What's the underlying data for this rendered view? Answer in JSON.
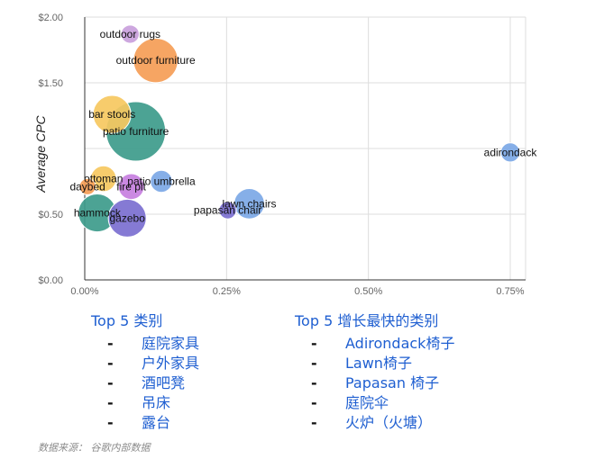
{
  "chart_data": {
    "type": "bubble",
    "ylabel": "Average CPC",
    "xlabel": "",
    "xlim": [
      0,
      0.0077
    ],
    "ylim": [
      0,
      2.0
    ],
    "x_ticks": [
      "0.00%",
      "0.25%",
      "0.50%",
      "0.75%"
    ],
    "x_tick_values": [
      0,
      0.0025,
      0.005,
      0.0075
    ],
    "y_ticks": [
      "$0.00",
      "$0.50",
      "$1.50",
      "$2.00"
    ],
    "y_tick_values": [
      0,
      0.5,
      1.5,
      2.0
    ],
    "grid": true,
    "points": [
      {
        "label": "outdoor rugs",
        "x": 0.0008,
        "y": 1.87,
        "size": 0.6,
        "color": "#c9a0dc"
      },
      {
        "label": "outdoor furniture",
        "x": 0.00125,
        "y": 1.67,
        "size": 3.4,
        "color": "#f59d56"
      },
      {
        "label": "bar stools",
        "x": 0.00048,
        "y": 1.26,
        "size": 2.7,
        "color": "#f6c85f"
      },
      {
        "label": "patio furniture",
        "x": 0.0009,
        "y": 1.13,
        "size": 5.0,
        "color": "#3d9b8b"
      },
      {
        "label": "adirondack",
        "x": 0.0075,
        "y": 0.97,
        "size": 0.7,
        "color": "#7ca8e6"
      },
      {
        "label": "ottoman",
        "x": 0.00033,
        "y": 0.77,
        "size": 1.4,
        "color": "#f6c85f"
      },
      {
        "label": "patio umbrella",
        "x": 0.00135,
        "y": 0.75,
        "size": 1.0,
        "color": "#7ca8e6"
      },
      {
        "label": "daybed",
        "x": 5e-05,
        "y": 0.71,
        "size": 0.4,
        "color": "#f59d56"
      },
      {
        "label": "fire pit",
        "x": 0.00082,
        "y": 0.71,
        "size": 1.4,
        "color": "#c77fe0"
      },
      {
        "label": "lawn chairs",
        "x": 0.0029,
        "y": 0.58,
        "size": 1.9,
        "color": "#7ca8e6"
      },
      {
        "label": "papasan chair",
        "x": 0.00252,
        "y": 0.53,
        "size": 0.5,
        "color": "#7b6fd0"
      },
      {
        "label": "hammock",
        "x": 0.00022,
        "y": 0.51,
        "size": 2.7,
        "color": "#3d9b8b"
      },
      {
        "label": "gazebo",
        "x": 0.00075,
        "y": 0.47,
        "size": 2.7,
        "color": "#7b6fd0"
      }
    ]
  },
  "lists": {
    "left": {
      "title": "Top 5 类别",
      "items": [
        "庭院家具",
        "户外家具",
        "酒吧凳",
        "吊床",
        "露台"
      ]
    },
    "right": {
      "title": "Top 5 增长最快的类别",
      "items": [
        "Adirondack椅子",
        "Lawn椅子",
        "Papasan 椅子",
        "庭院伞",
        "火炉（火塘）"
      ]
    }
  },
  "source_note": "数据来源： 谷歌内部数据",
  "colors": {
    "list_text": "#1f5fd1",
    "grid": "#dddddd",
    "axis": "#333333"
  }
}
